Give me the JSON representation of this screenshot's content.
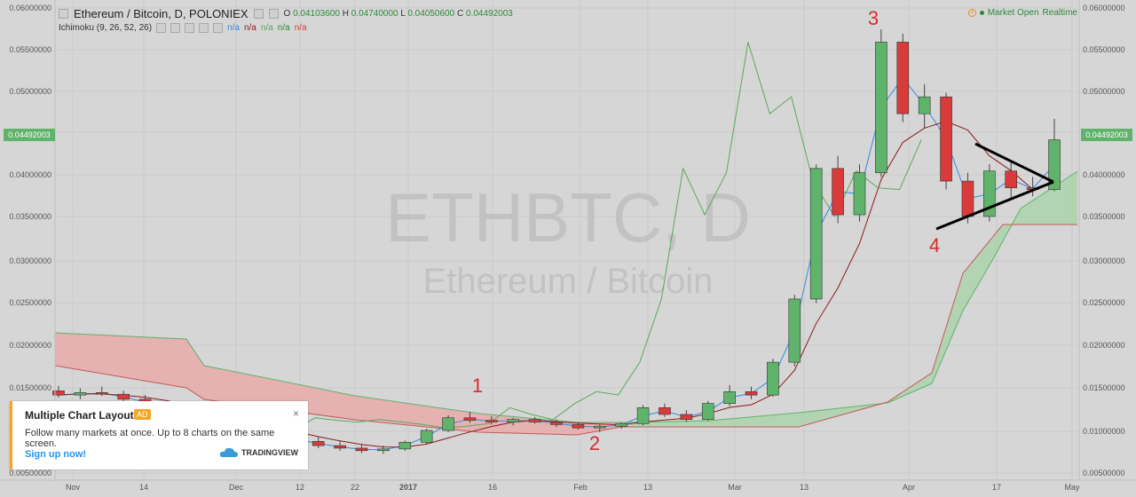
{
  "header": {
    "title": "Ethereum / Bitcoin, D, POLONIEX",
    "ohlc": {
      "o_label": "O",
      "o": "0.04103600",
      "h_label": "H",
      "h": "0.04740000",
      "l_label": "L",
      "l": "0.04050600",
      "c_label": "C",
      "c": "0.04492003"
    },
    "indicator": "Ichimoku (9, 26, 52, 26)",
    "indicator_values": [
      "n/a",
      "n/a",
      "n/a",
      "n/a",
      "n/a"
    ],
    "market_status": "Market Open",
    "realtime": "Realtime"
  },
  "watermark": {
    "symbol": "ETHBTC, D",
    "name": "Ethereum / Bitcoin"
  },
  "current_price": "0.04492003",
  "annotations": [
    "1",
    "2",
    "3",
    "4"
  ],
  "popup": {
    "title": "Multiple Chart Layout",
    "ad_label": "AD",
    "close": "×",
    "body": "Follow many markets at once. Up to 8 charts on the same screen.",
    "link": "Sign up now!",
    "logo_text": "TRADINGVIEW"
  },
  "colors": {
    "up": "#5fb36a",
    "down": "#d93a3a",
    "cloud_red": "#e9a8a8",
    "cloud_green": "#a6d3a6",
    "conversion": "#2e8ce6",
    "base": "#8b1a1a",
    "lagging": "#5aa85a",
    "accent": "#f5a623"
  },
  "chart_data": {
    "type": "candlestick",
    "y_ticks": [
      "0.06000000",
      "0.05500000",
      "0.05000000",
      "0.04500000",
      "0.04000000",
      "0.03500000",
      "0.03000000",
      "0.02500000",
      "0.02000000",
      "0.01500000",
      "0.01000000",
      "0.00500000"
    ],
    "x_ticks": [
      "Nov",
      "14",
      "Dec",
      "12",
      "22",
      "2017",
      "16",
      "Feb",
      "13",
      "Mar",
      "13",
      "Apr",
      "17",
      "May"
    ],
    "ylim": [
      0.0045,
      0.0615
    ],
    "candles": [
      {
        "d": "Oct 30",
        "o": 0.0151,
        "h": 0.0157,
        "l": 0.0143,
        "c": 0.0146
      },
      {
        "d": "Nov 3",
        "o": 0.0146,
        "h": 0.0154,
        "l": 0.0141,
        "c": 0.0149
      },
      {
        "d": "Nov 7",
        "o": 0.0149,
        "h": 0.0156,
        "l": 0.0145,
        "c": 0.0147
      },
      {
        "d": "Nov 11",
        "o": 0.0147,
        "h": 0.0151,
        "l": 0.0139,
        "c": 0.0141
      },
      {
        "d": "Nov 15",
        "o": 0.0141,
        "h": 0.0146,
        "l": 0.0131,
        "c": 0.0134
      },
      {
        "d": "Nov 19",
        "o": 0.0134,
        "h": 0.0137,
        "l": 0.0124,
        "c": 0.0126
      },
      {
        "d": "Nov 23",
        "o": 0.0126,
        "h": 0.0131,
        "l": 0.0118,
        "c": 0.012
      },
      {
        "d": "Nov 27",
        "o": 0.012,
        "h": 0.0125,
        "l": 0.0113,
        "c": 0.0115
      },
      {
        "d": "Dec 1",
        "o": 0.0115,
        "h": 0.0121,
        "l": 0.0106,
        "c": 0.0108
      },
      {
        "d": "Dec 5",
        "o": 0.0108,
        "h": 0.0113,
        "l": 0.0099,
        "c": 0.0102
      },
      {
        "d": "Dec 9",
        "o": 0.0102,
        "h": 0.0106,
        "l": 0.0094,
        "c": 0.0096
      },
      {
        "d": "Dec 13",
        "o": 0.0096,
        "h": 0.01,
        "l": 0.0089,
        "c": 0.0091
      },
      {
        "d": "Dec 17",
        "o": 0.0091,
        "h": 0.0096,
        "l": 0.0083,
        "c": 0.0086
      },
      {
        "d": "Dec 21",
        "o": 0.0086,
        "h": 0.0092,
        "l": 0.008,
        "c": 0.0083
      },
      {
        "d": "Dec 25",
        "o": 0.0083,
        "h": 0.0088,
        "l": 0.0077,
        "c": 0.008
      },
      {
        "d": "Dec 29",
        "o": 0.008,
        "h": 0.0086,
        "l": 0.0076,
        "c": 0.0082
      },
      {
        "d": "Jan 2",
        "o": 0.0082,
        "h": 0.0092,
        "l": 0.008,
        "c": 0.009
      },
      {
        "d": "Jan 6",
        "o": 0.009,
        "h": 0.0106,
        "l": 0.0088,
        "c": 0.0104
      },
      {
        "d": "Jan 10",
        "o": 0.0104,
        "h": 0.0122,
        "l": 0.0102,
        "c": 0.0119
      },
      {
        "d": "Jan 14",
        "o": 0.0119,
        "h": 0.0126,
        "l": 0.0113,
        "c": 0.0116
      },
      {
        "d": "Jan 18",
        "o": 0.0116,
        "h": 0.0121,
        "l": 0.0111,
        "c": 0.0114
      },
      {
        "d": "Jan 22",
        "o": 0.0114,
        "h": 0.0119,
        "l": 0.011,
        "c": 0.0117
      },
      {
        "d": "Jan 26",
        "o": 0.0117,
        "h": 0.012,
        "l": 0.0112,
        "c": 0.0114
      },
      {
        "d": "Jan 30",
        "o": 0.0114,
        "h": 0.0117,
        "l": 0.0108,
        "c": 0.0111
      },
      {
        "d": "Feb 3",
        "o": 0.0111,
        "h": 0.0114,
        "l": 0.0105,
        "c": 0.0107
      },
      {
        "d": "Feb 7",
        "o": 0.0107,
        "h": 0.0111,
        "l": 0.0102,
        "c": 0.0109
      },
      {
        "d": "Feb 11",
        "o": 0.0109,
        "h": 0.0114,
        "l": 0.0106,
        "c": 0.0112
      },
      {
        "d": "Feb 15",
        "o": 0.0112,
        "h": 0.0134,
        "l": 0.011,
        "c": 0.0131
      },
      {
        "d": "Feb 19",
        "o": 0.0131,
        "h": 0.0136,
        "l": 0.012,
        "c": 0.0123
      },
      {
        "d": "Feb 23",
        "o": 0.0123,
        "h": 0.0128,
        "l": 0.0114,
        "c": 0.0117
      },
      {
        "d": "Feb 27",
        "o": 0.0117,
        "h": 0.0139,
        "l": 0.0115,
        "c": 0.0136
      },
      {
        "d": "Mar 3",
        "o": 0.0136,
        "h": 0.0158,
        "l": 0.0133,
        "c": 0.015
      },
      {
        "d": "Mar 7",
        "o": 0.015,
        "h": 0.0156,
        "l": 0.0141,
        "c": 0.0146
      },
      {
        "d": "Mar 11",
        "o": 0.0146,
        "h": 0.0189,
        "l": 0.0144,
        "c": 0.0185
      },
      {
        "d": "Mar 15",
        "o": 0.0185,
        "h": 0.0265,
        "l": 0.018,
        "c": 0.026
      },
      {
        "d": "Mar 19",
        "o": 0.026,
        "h": 0.042,
        "l": 0.0255,
        "c": 0.0415
      },
      {
        "d": "Mar 23",
        "o": 0.0415,
        "h": 0.043,
        "l": 0.035,
        "c": 0.036
      },
      {
        "d": "Mar 27",
        "o": 0.036,
        "h": 0.042,
        "l": 0.0352,
        "c": 0.041
      },
      {
        "d": "Mar 31",
        "o": 0.041,
        "h": 0.058,
        "l": 0.0405,
        "c": 0.0565
      },
      {
        "d": "Apr 4",
        "o": 0.0565,
        "h": 0.0575,
        "l": 0.047,
        "c": 0.048
      },
      {
        "d": "Apr 8",
        "o": 0.048,
        "h": 0.0515,
        "l": 0.0462,
        "c": 0.05
      },
      {
        "d": "Apr 12",
        "o": 0.05,
        "h": 0.0505,
        "l": 0.039,
        "c": 0.04
      },
      {
        "d": "Apr 16",
        "o": 0.04,
        "h": 0.041,
        "l": 0.035,
        "c": 0.0358
      },
      {
        "d": "Apr 20",
        "o": 0.0358,
        "h": 0.042,
        "l": 0.0352,
        "c": 0.0412
      },
      {
        "d": "Apr 24",
        "o": 0.0412,
        "h": 0.0425,
        "l": 0.038,
        "c": 0.0392
      },
      {
        "d": "Apr 28",
        "o": 0.0392,
        "h": 0.0405,
        "l": 0.0382,
        "c": 0.039
      },
      {
        "d": "May 2",
        "o": 0.039,
        "h": 0.0474,
        "l": 0.0388,
        "c": 0.0449
      }
    ]
  }
}
